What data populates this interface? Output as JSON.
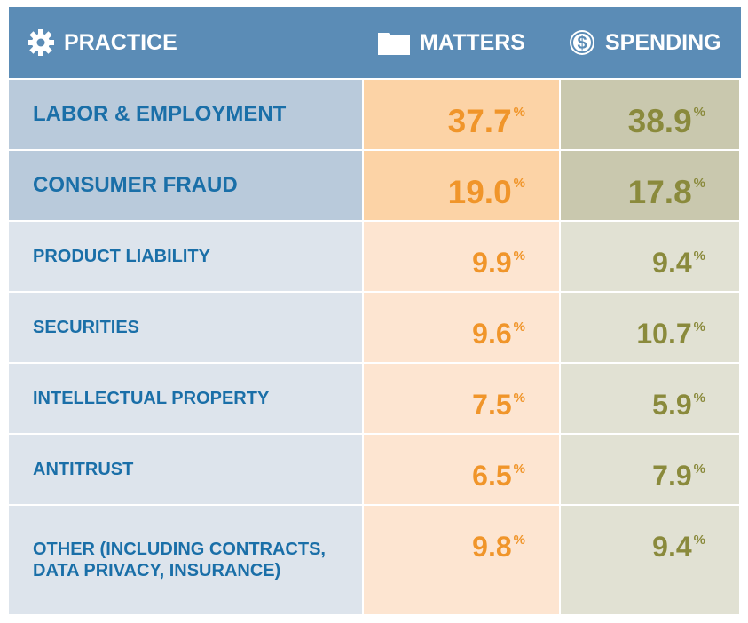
{
  "table": {
    "columns": [
      "PRACTICE",
      "MATTERS",
      "SPENDING"
    ],
    "unit": "%",
    "rows": [
      {
        "practice": "LABOR & EMPLOYMENT",
        "matters": "37.7",
        "spending": "38.9",
        "highlight": true
      },
      {
        "practice": "CONSUMER FRAUD",
        "matters": "19.0",
        "spending": "17.8",
        "highlight": true
      },
      {
        "practice": "PRODUCT LIABILITY",
        "matters": "9.9",
        "spending": "9.4",
        "highlight": false
      },
      {
        "practice": "SECURITIES",
        "matters": "9.6",
        "spending": "10.7",
        "highlight": false
      },
      {
        "practice": "INTELLECTUAL PROPERTY",
        "matters": "7.5",
        "spending": "5.9",
        "highlight": false
      },
      {
        "practice": "ANTITRUST",
        "matters": "6.5",
        "spending": "7.9",
        "highlight": false
      },
      {
        "practice": "OTHER (INCLUDING CONTRACTS, DATA PRIVACY, INSURANCE)",
        "matters": "9.8",
        "spending": "9.4",
        "highlight": false
      }
    ]
  }
}
